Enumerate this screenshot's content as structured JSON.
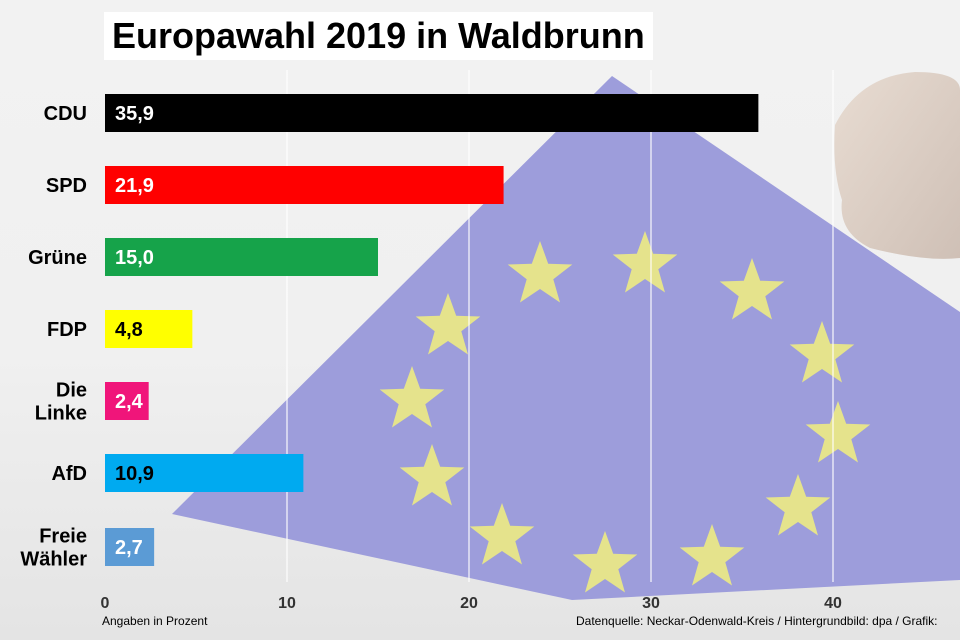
{
  "chart_data": {
    "type": "bar",
    "orientation": "horizontal",
    "title": "Europawahl 2019 in Waldbrunn",
    "categories": [
      "CDU",
      "SPD",
      "Grüne",
      "FDP",
      "Die Linke",
      "AfD",
      "Freie Wähler"
    ],
    "category_lines": [
      [
        "CDU"
      ],
      [
        "SPD"
      ],
      [
        "Grüne"
      ],
      [
        "FDP"
      ],
      [
        "Die",
        "Linke"
      ],
      [
        "AfD"
      ],
      [
        "Freie",
        "Wähler"
      ]
    ],
    "values": [
      35.9,
      21.9,
      15.0,
      4.8,
      2.4,
      10.9,
      2.7
    ],
    "value_labels": [
      "35,9",
      "21,9",
      "15,0",
      "4,8",
      "2,4",
      "10,9",
      "2,7"
    ],
    "colors": [
      "#000000",
      "#ff0000",
      "#16a34a",
      "#ffff00",
      "#f0157a",
      "#00aaf0",
      "#5b9bd5"
    ],
    "label_colors": [
      "#ffffff",
      "#ffffff",
      "#ffffff",
      "#000000",
      "#ffffff",
      "#000000",
      "#ffffff"
    ],
    "xlim": [
      0,
      45
    ],
    "xticks": [
      0,
      10,
      20,
      30,
      40
    ],
    "grid": true,
    "xlabel": "",
    "ylabel": ""
  },
  "footer": {
    "unit_note": "Angaben in Prozent",
    "source": "Datenquelle: Neckar-Odenwald-Kreis / Hintergrundbild: dpa / Grafik: "
  }
}
